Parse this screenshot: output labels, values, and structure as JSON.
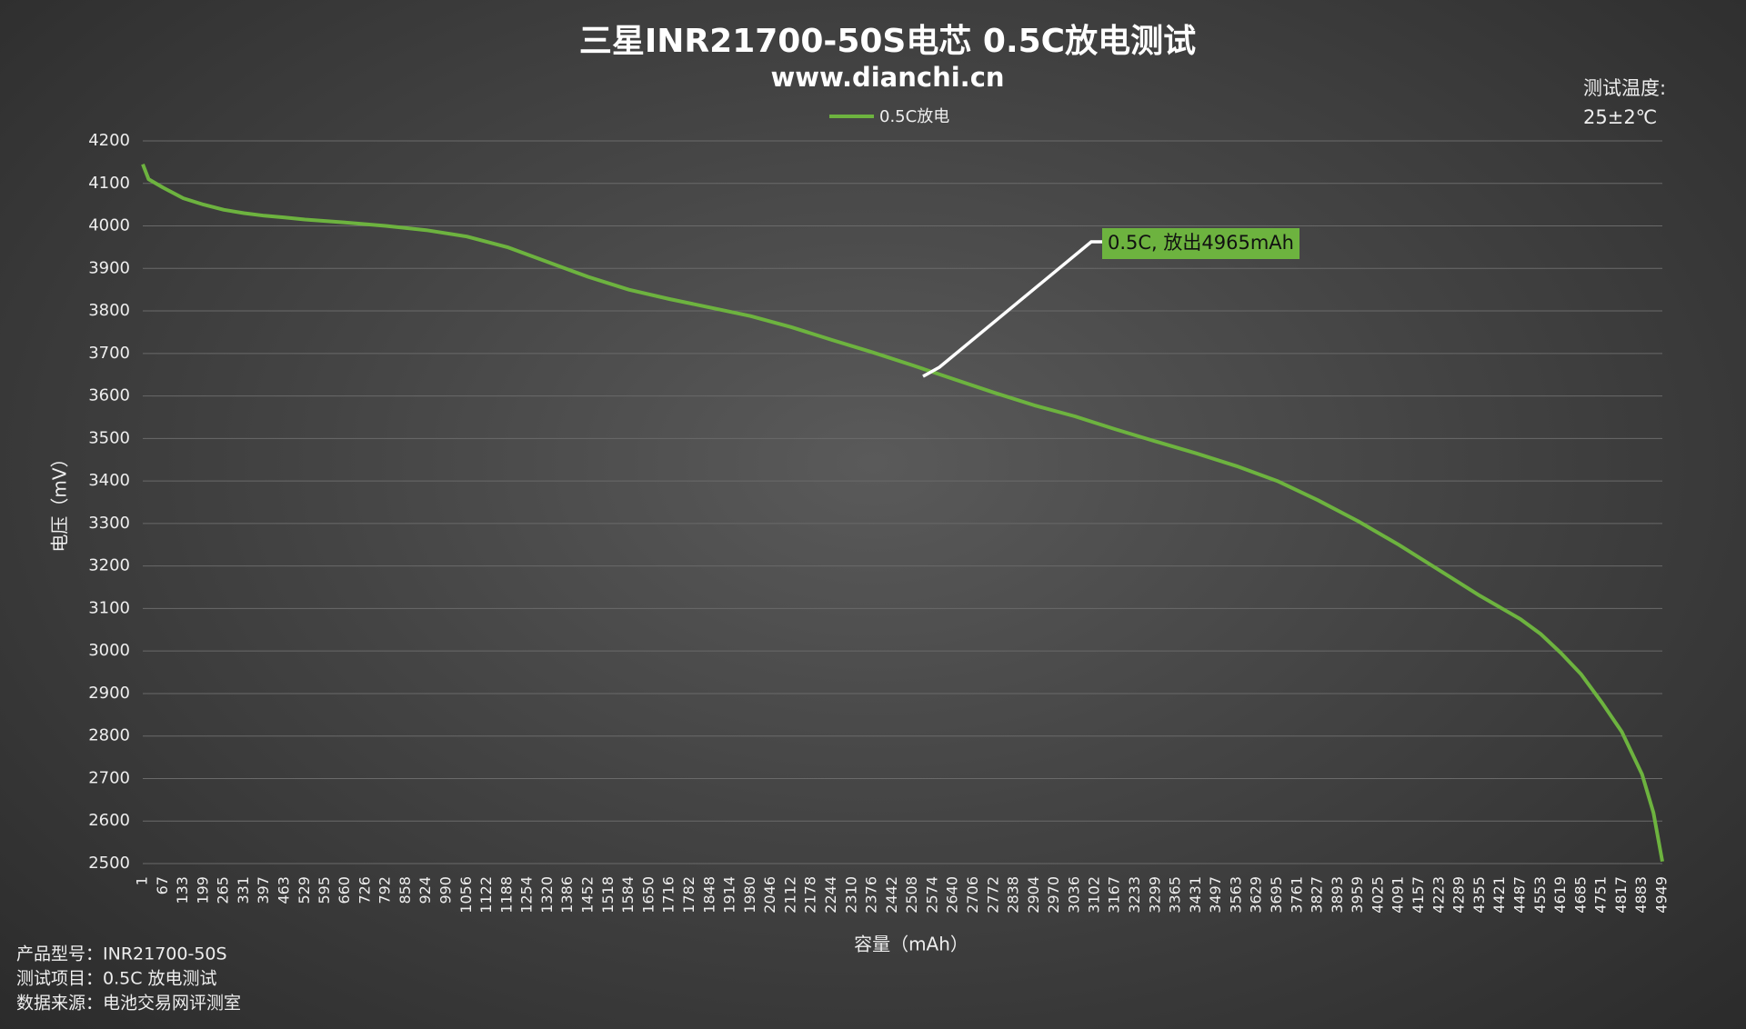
{
  "chart_data": {
    "type": "line",
    "title": "三星INR21700-50S电芯 0.5C放电测试",
    "subtitle": "www.dianchi.cn",
    "note": [
      "测试温度:",
      "25±2℃"
    ],
    "x_label": "容量（mAh）",
    "y_label": "电压（mV）",
    "annotation": "0.5C, 放出4965mAh",
    "footnotes": [
      "产品型号：INR21700-50S",
      "测试项目：0.5C 放电测试",
      "数据来源：电池交易网评测室"
    ],
    "grid": true,
    "legend": "top",
    "x": [
      1,
      20,
      67,
      133,
      199,
      265,
      331,
      397,
      463,
      529,
      660,
      792,
      924,
      1056,
      1188,
      1320,
      1452,
      1584,
      1716,
      1848,
      1980,
      2112,
      2244,
      2376,
      2508,
      2640,
      2772,
      2904,
      3036,
      3167,
      3299,
      3431,
      3563,
      3695,
      3827,
      3959,
      4091,
      4223,
      4355,
      4487,
      4553,
      4619,
      4685,
      4751,
      4817,
      4883,
      4920,
      4949
    ],
    "series": [
      {
        "name": "0.5C放电",
        "color": "#6db33f",
        "values": [
          4145,
          4110,
          4090,
          4065,
          4050,
          4038,
          4030,
          4024,
          4020,
          4015,
          4008,
          4000,
          3990,
          3975,
          3950,
          3915,
          3880,
          3850,
          3828,
          3808,
          3788,
          3762,
          3732,
          3703,
          3672,
          3640,
          3608,
          3578,
          3552,
          3522,
          3493,
          3465,
          3435,
          3400,
          3355,
          3305,
          3250,
          3190,
          3130,
          3075,
          3040,
          2995,
          2945,
          2880,
          2810,
          2710,
          2620,
          2505
        ]
      }
    ],
    "xlim": [
      1,
      4949
    ],
    "xticks": [
      1,
      67,
      133,
      199,
      265,
      331,
      397,
      463,
      529,
      595,
      660,
      726,
      792,
      858,
      924,
      990,
      1056,
      1122,
      1188,
      1254,
      1320,
      1386,
      1452,
      1518,
      1584,
      1650,
      1716,
      1782,
      1848,
      1914,
      1980,
      2046,
      2112,
      2178,
      2244,
      2310,
      2376,
      2442,
      2508,
      2574,
      2640,
      2706,
      2772,
      2838,
      2904,
      2970,
      3036,
      3102,
      3167,
      3233,
      3299,
      3365,
      3431,
      3497,
      3563,
      3629,
      3695,
      3761,
      3827,
      3893,
      3959,
      4025,
      4091,
      4157,
      4223,
      4289,
      4355,
      4421,
      4487,
      4553,
      4619,
      4685,
      4751,
      4817,
      4883,
      4949
    ],
    "ylim": [
      2500,
      4200
    ],
    "yticks": [
      2500,
      2600,
      2700,
      2800,
      2900,
      3000,
      3100,
      3200,
      3300,
      3400,
      3500,
      3600,
      3700,
      3800,
      3900,
      4000,
      4100,
      4200
    ]
  }
}
